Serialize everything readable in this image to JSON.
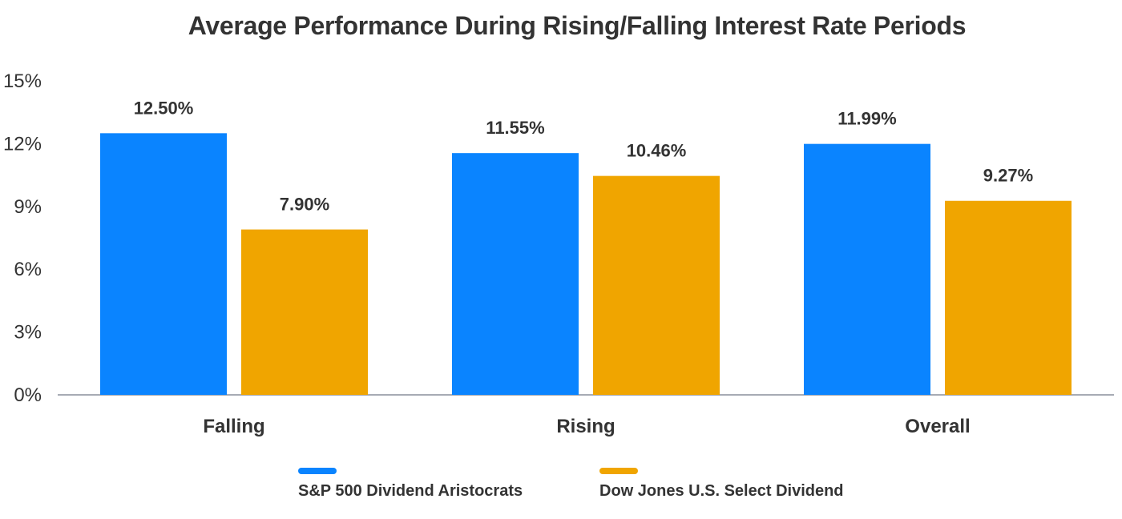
{
  "chart_data": {
    "type": "bar",
    "title": "Average Performance During Rising/Falling Interest Rate Periods",
    "categories": [
      "Falling",
      "Rising",
      "Overall"
    ],
    "series": [
      {
        "name": "S&P 500 Dividend Aristocrats",
        "color": "#0A84FF",
        "values": [
          12.5,
          11.55,
          11.99
        ],
        "labels": [
          "12.50%",
          "11.55%",
          "11.99%"
        ]
      },
      {
        "name": "Dow Jones U.S. Select Dividend",
        "color": "#F0A500",
        "values": [
          7.9,
          10.46,
          9.27
        ],
        "labels": [
          "7.90%",
          "10.46%",
          "9.27%"
        ]
      }
    ],
    "yticks": [
      "0%",
      "3%",
      "6%",
      "9%",
      "12%",
      "15%"
    ],
    "ytick_values": [
      0,
      3,
      6,
      9,
      12,
      15
    ],
    "ylim": [
      0,
      15
    ],
    "grid": false,
    "legend_position": "bottom"
  }
}
